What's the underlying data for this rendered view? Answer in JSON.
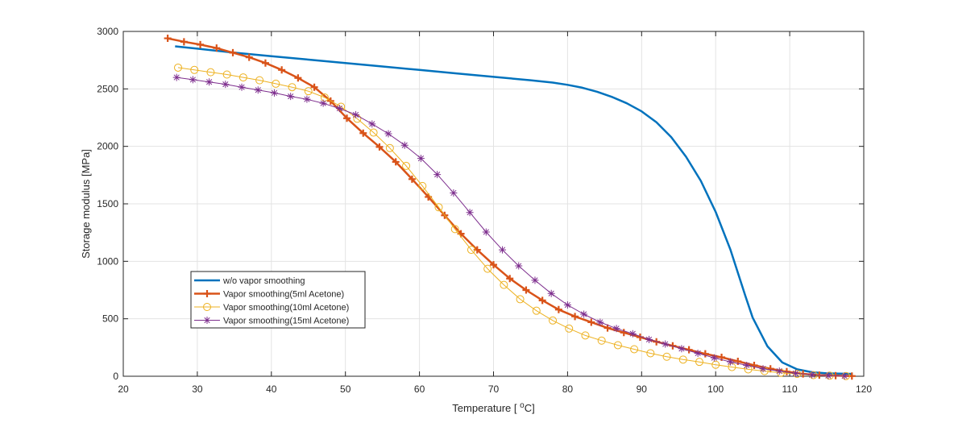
{
  "chart_data": {
    "type": "line",
    "title": "",
    "xlabel_main": "Temperature [ ",
    "xlabel_sup": "o",
    "xlabel_end": "C]",
    "ylabel": "Storage modulus [MPa]",
    "xlim": [
      20,
      120
    ],
    "ylim": [
      0,
      3000
    ],
    "xticks": [
      20,
      30,
      40,
      50,
      60,
      70,
      80,
      90,
      100,
      110,
      120
    ],
    "yticks": [
      0,
      500,
      1000,
      1500,
      2000,
      2500,
      3000
    ],
    "grid": true,
    "legend_position": "lower-left",
    "series": [
      {
        "name": "w/o vapor smoothing",
        "color": "#0072BD",
        "marker": "none",
        "x": [
          27,
          30,
          35,
          40,
          45,
          50,
          55,
          60,
          65,
          70,
          75,
          78,
          80,
          82,
          84,
          86,
          88,
          90,
          92,
          94,
          96,
          98,
          100,
          102,
          104,
          105,
          107,
          109,
          111,
          113,
          115,
          118.5
        ],
        "y": [
          2870,
          2850,
          2815,
          2785,
          2755,
          2725,
          2695,
          2665,
          2635,
          2605,
          2575,
          2555,
          2535,
          2510,
          2475,
          2430,
          2375,
          2305,
          2210,
          2080,
          1910,
          1700,
          1430,
          1100,
          700,
          510,
          260,
          120,
          60,
          35,
          25,
          20
        ]
      },
      {
        "name": "Vapor smoothing(5ml Acetone)",
        "color": "#D95319",
        "marker": "plus",
        "x": [
          26,
          28.2,
          30.4,
          32.6,
          34.8,
          37,
          39.2,
          41.4,
          43.6,
          45.8,
          48,
          50.2,
          52.4,
          54.6,
          56.8,
          59,
          61.2,
          63.4,
          65.6,
          67.8,
          70,
          72.2,
          74.4,
          76.6,
          78.8,
          81,
          83.2,
          85.4,
          87.6,
          89.8,
          92,
          94.2,
          96.4,
          98.6,
          100.8,
          103,
          105.2,
          107.4,
          109.6,
          111.8,
          114,
          116.2,
          118.4
        ],
        "y": [
          2940,
          2910,
          2885,
          2855,
          2815,
          2775,
          2725,
          2665,
          2595,
          2515,
          2395,
          2245,
          2115,
          1995,
          1865,
          1715,
          1560,
          1400,
          1240,
          1100,
          970,
          850,
          750,
          660,
          580,
          520,
          470,
          420,
          380,
          340,
          300,
          265,
          230,
          195,
          165,
          130,
          95,
          65,
          40,
          20,
          10,
          5,
          2
        ]
      },
      {
        "name": "Vapor smoothing(10ml Acetone)",
        "color": "#EDB120",
        "marker": "circle",
        "x": [
          27.4,
          29.6,
          31.8,
          34,
          36.2,
          38.4,
          40.6,
          42.8,
          45,
          47.2,
          49.4,
          51.6,
          53.8,
          56,
          58.2,
          60.4,
          62.6,
          64.8,
          67,
          69.2,
          71.4,
          73.6,
          75.8,
          78,
          80.2,
          82.4,
          84.6,
          86.8,
          89,
          91.2,
          93.4,
          95.6,
          97.8,
          100,
          102.2,
          104.4,
          106.6,
          108.8,
          111,
          113.2,
          115.4,
          117.6
        ],
        "y": [
          2685,
          2665,
          2645,
          2625,
          2600,
          2575,
          2545,
          2515,
          2480,
          2425,
          2345,
          2240,
          2120,
          1985,
          1830,
          1655,
          1470,
          1280,
          1100,
          935,
          795,
          670,
          570,
          485,
          415,
          355,
          310,
          270,
          235,
          200,
          170,
          145,
          125,
          100,
          80,
          60,
          45,
          30,
          20,
          10,
          5,
          2
        ]
      },
      {
        "name": "Vapor smoothing(15ml Acetone)",
        "color": "#7E2F8E",
        "marker": "star",
        "x": [
          27.2,
          29.4,
          31.6,
          33.8,
          36,
          38.2,
          40.4,
          42.6,
          44.8,
          47,
          49.2,
          51.4,
          53.6,
          55.8,
          58,
          60.2,
          62.4,
          64.6,
          66.8,
          69,
          71.2,
          73.4,
          75.6,
          77.8,
          80,
          82.2,
          84.4,
          86.6,
          88.8,
          91,
          93.2,
          95.4,
          97.6,
          99.8,
          102,
          104.2,
          106.4,
          108.6,
          110.8,
          113,
          115.2,
          117.4
        ],
        "y": [
          2600,
          2580,
          2560,
          2540,
          2515,
          2490,
          2465,
          2435,
          2410,
          2375,
          2330,
          2275,
          2195,
          2110,
          2010,
          1895,
          1755,
          1595,
          1425,
          1255,
          1100,
          960,
          835,
          720,
          620,
          540,
          470,
          415,
          370,
          320,
          280,
          240,
          200,
          160,
          125,
          95,
          65,
          45,
          25,
          12,
          5,
          2
        ]
      }
    ]
  }
}
